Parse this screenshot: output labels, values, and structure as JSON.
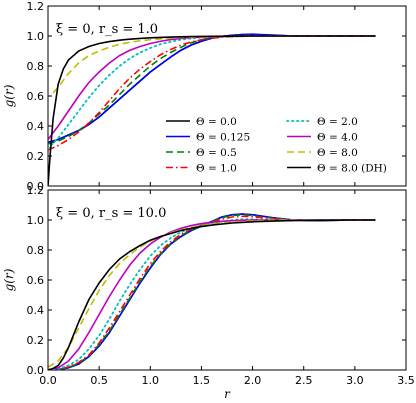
{
  "chart_data": [
    {
      "type": "line",
      "title": "ξ = 0,  r_s = 1.0",
      "xlabel": "",
      "ylabel": "g(r)",
      "xlim": [
        0.0,
        3.5
      ],
      "ylim": [
        0.0,
        1.2
      ],
      "xticks": [
        "0.0",
        "0.5",
        "1.0",
        "1.5",
        "2.0",
        "2.5",
        "3.0",
        "3.5"
      ],
      "yticks": [
        "0.0",
        "0.2",
        "0.4",
        "0.6",
        "0.8",
        "1.0",
        "1.2"
      ],
      "grid": false,
      "legend_position": "lower-right",
      "series": [
        {
          "name": "Θ = 0.0",
          "color": "#000000",
          "style": "solid",
          "x": [
            0.0,
            0.1,
            0.2,
            0.3,
            0.4,
            0.5,
            0.6,
            0.7,
            0.8,
            0.9,
            1.0,
            1.1,
            1.2,
            1.3,
            1.4,
            1.5,
            1.6,
            1.7,
            1.8,
            1.9,
            2.0,
            2.2,
            2.4,
            2.6,
            2.8,
            3.0,
            3.2
          ],
          "y": [
            0.29,
            0.31,
            0.34,
            0.37,
            0.41,
            0.46,
            0.52,
            0.58,
            0.64,
            0.7,
            0.76,
            0.81,
            0.86,
            0.905,
            0.94,
            0.965,
            0.985,
            0.997,
            1.005,
            1.01,
            1.01,
            1.005,
            1.0,
            1.0,
            1.0,
            1.0,
            1.0
          ]
        },
        {
          "name": "Θ = 0.125",
          "color": "#0000ff",
          "style": "solid",
          "x": [
            0.0,
            0.1,
            0.2,
            0.3,
            0.4,
            0.5,
            0.6,
            0.7,
            0.8,
            0.9,
            1.0,
            1.1,
            1.2,
            1.3,
            1.4,
            1.5,
            1.6,
            1.7,
            1.8,
            1.9,
            2.0,
            2.2,
            2.4,
            2.6,
            2.8,
            3.0,
            3.2
          ],
          "y": [
            0.29,
            0.31,
            0.34,
            0.37,
            0.41,
            0.46,
            0.52,
            0.58,
            0.64,
            0.7,
            0.76,
            0.81,
            0.86,
            0.905,
            0.94,
            0.965,
            0.985,
            0.997,
            1.005,
            1.01,
            1.012,
            1.006,
            1.0,
            1.0,
            1.0,
            1.0,
            1.0
          ]
        },
        {
          "name": "Θ = 0.5",
          "color": "#008000",
          "style": "dashed",
          "x": [
            0.0,
            0.1,
            0.2,
            0.3,
            0.4,
            0.5,
            0.6,
            0.7,
            0.8,
            0.9,
            1.0,
            1.1,
            1.2,
            1.3,
            1.4,
            1.5,
            1.6,
            1.7,
            1.8,
            1.9,
            2.0,
            2.2,
            2.4,
            2.6,
            2.8,
            3.0,
            3.2
          ],
          "y": [
            0.28,
            0.3,
            0.33,
            0.37,
            0.42,
            0.48,
            0.54,
            0.61,
            0.68,
            0.74,
            0.8,
            0.85,
            0.89,
            0.925,
            0.955,
            0.975,
            0.99,
            0.998,
            1.002,
            1.003,
            1.002,
            1.0,
            1.0,
            1.0,
            1.0,
            1.0,
            1.0
          ]
        },
        {
          "name": "Θ = 1.0",
          "color": "#ff0000",
          "style": "dashdot",
          "x": [
            0.0,
            0.1,
            0.2,
            0.3,
            0.4,
            0.5,
            0.6,
            0.7,
            0.8,
            0.9,
            1.0,
            1.1,
            1.2,
            1.3,
            1.4,
            1.5,
            1.6,
            1.7,
            1.8,
            1.9,
            2.0,
            2.2,
            2.4,
            2.6,
            2.8,
            3.0,
            3.2
          ],
          "y": [
            0.24,
            0.27,
            0.31,
            0.36,
            0.42,
            0.49,
            0.57,
            0.65,
            0.72,
            0.78,
            0.83,
            0.875,
            0.91,
            0.94,
            0.96,
            0.975,
            0.985,
            0.992,
            0.996,
            0.998,
            0.999,
            1.0,
            1.0,
            1.0,
            1.0,
            1.0,
            1.0
          ]
        },
        {
          "name": "Θ = 2.0",
          "color": "#00bfbf",
          "style": "dotted",
          "x": [
            0.0,
            0.1,
            0.2,
            0.3,
            0.4,
            0.5,
            0.6,
            0.7,
            0.8,
            0.9,
            1.0,
            1.1,
            1.2,
            1.3,
            1.4,
            1.5,
            1.6,
            1.7,
            1.8,
            1.9,
            2.0,
            2.2,
            2.4,
            2.6,
            2.8,
            3.0,
            3.2
          ],
          "y": [
            0.25,
            0.32,
            0.41,
            0.5,
            0.59,
            0.67,
            0.74,
            0.8,
            0.85,
            0.89,
            0.92,
            0.945,
            0.962,
            0.975,
            0.984,
            0.99,
            0.994,
            0.997,
            0.998,
            0.999,
            1.0,
            1.0,
            1.0,
            1.0,
            1.0,
            1.0,
            1.0
          ]
        },
        {
          "name": "Θ = 4.0",
          "color": "#bf00bf",
          "style": "solid",
          "x": [
            0.0,
            0.1,
            0.2,
            0.3,
            0.4,
            0.5,
            0.6,
            0.7,
            0.8,
            0.9,
            1.0,
            1.1,
            1.2,
            1.3,
            1.4,
            1.5,
            1.6,
            1.7,
            1.8,
            1.9,
            2.0,
            2.2,
            2.4,
            2.6,
            2.8,
            3.0,
            3.2
          ],
          "y": [
            0.31,
            0.4,
            0.5,
            0.6,
            0.69,
            0.76,
            0.82,
            0.87,
            0.905,
            0.93,
            0.95,
            0.965,
            0.976,
            0.984,
            0.99,
            0.993,
            0.995,
            0.997,
            0.998,
            0.999,
            1.0,
            1.0,
            1.0,
            1.0,
            1.0,
            1.0,
            1.0
          ]
        },
        {
          "name": "Θ = 8.0",
          "color": "#bfbf00",
          "style": "dashed",
          "x": [
            0.05,
            0.1,
            0.2,
            0.3,
            0.4,
            0.5,
            0.6,
            0.7,
            0.8,
            0.9,
            1.0,
            1.1,
            1.2,
            1.3,
            1.4,
            1.5,
            1.6,
            1.7,
            1.8,
            1.9,
            2.0,
            2.2,
            2.4,
            2.6,
            2.8,
            3.0,
            3.2
          ],
          "y": [
            0.62,
            0.66,
            0.75,
            0.82,
            0.87,
            0.9,
            0.925,
            0.945,
            0.958,
            0.968,
            0.975,
            0.981,
            0.986,
            0.99,
            0.992,
            0.994,
            0.996,
            0.997,
            0.998,
            0.999,
            1.0,
            1.0,
            1.0,
            1.0,
            1.0,
            1.0,
            1.0
          ]
        },
        {
          "name": "Θ = 8.0 (DH)",
          "color": "#000000",
          "style": "solid",
          "x": [
            0.0,
            0.02,
            0.05,
            0.1,
            0.15,
            0.2,
            0.3,
            0.4,
            0.5,
            0.6,
            0.7,
            0.8,
            0.9,
            1.0,
            1.2,
            1.4,
            1.6,
            1.8,
            2.0,
            2.2,
            2.4,
            2.6,
            2.8,
            3.0,
            3.2
          ],
          "y": [
            0.0,
            0.2,
            0.45,
            0.68,
            0.78,
            0.84,
            0.9,
            0.93,
            0.95,
            0.963,
            0.972,
            0.979,
            0.984,
            0.988,
            0.993,
            0.996,
            0.998,
            0.999,
            1.0,
            1.0,
            1.0,
            1.0,
            1.0,
            1.0,
            1.0
          ]
        }
      ]
    },
    {
      "type": "line",
      "title": "ξ = 0,  r_s = 10.0",
      "xlabel": "r",
      "ylabel": "g(r)",
      "xlim": [
        0.0,
        3.5
      ],
      "ylim": [
        0.0,
        1.2
      ],
      "xticks": [
        "0.0",
        "0.5",
        "1.0",
        "1.5",
        "2.0",
        "2.5",
        "3.0",
        "3.5"
      ],
      "yticks": [
        "0.0",
        "0.2",
        "0.4",
        "0.6",
        "0.8",
        "1.0",
        "1.2"
      ],
      "grid": false,
      "series": [
        {
          "name": "Θ = 0.0",
          "color": "#000000",
          "style": "solid",
          "x": [
            0.0,
            0.1,
            0.2,
            0.3,
            0.4,
            0.5,
            0.6,
            0.7,
            0.8,
            0.9,
            1.0,
            1.1,
            1.2,
            1.3,
            1.4,
            1.5,
            1.6,
            1.7,
            1.8,
            1.9,
            2.0,
            2.1,
            2.2,
            2.4,
            2.6,
            2.8,
            3.0,
            3.2
          ],
          "y": [
            0.0,
            0.003,
            0.015,
            0.04,
            0.09,
            0.16,
            0.25,
            0.36,
            0.47,
            0.58,
            0.68,
            0.77,
            0.84,
            0.89,
            0.93,
            0.96,
            0.99,
            1.02,
            1.035,
            1.04,
            1.035,
            1.025,
            1.015,
            1.0,
            0.995,
            0.998,
            1.0,
            1.0
          ]
        },
        {
          "name": "Θ = 0.125",
          "color": "#0000ff",
          "style": "solid",
          "x": [
            0.0,
            0.1,
            0.2,
            0.3,
            0.4,
            0.5,
            0.6,
            0.7,
            0.8,
            0.9,
            1.0,
            1.1,
            1.2,
            1.3,
            1.4,
            1.5,
            1.6,
            1.7,
            1.8,
            1.9,
            2.0,
            2.1,
            2.2,
            2.4,
            2.6,
            2.8,
            3.0,
            3.2
          ],
          "y": [
            0.0,
            0.003,
            0.015,
            0.04,
            0.09,
            0.16,
            0.25,
            0.36,
            0.47,
            0.58,
            0.68,
            0.77,
            0.84,
            0.89,
            0.93,
            0.96,
            0.99,
            1.02,
            1.035,
            1.04,
            1.035,
            1.025,
            1.015,
            1.0,
            0.995,
            0.998,
            1.0,
            1.0
          ]
        },
        {
          "name": "Θ = 0.5",
          "color": "#008000",
          "style": "dashed",
          "x": [
            0.0,
            0.1,
            0.2,
            0.3,
            0.4,
            0.5,
            0.6,
            0.7,
            0.8,
            0.9,
            1.0,
            1.1,
            1.2,
            1.3,
            1.4,
            1.5,
            1.6,
            1.7,
            1.8,
            1.9,
            2.0,
            2.1,
            2.2,
            2.4,
            2.6,
            2.8,
            3.0,
            3.2
          ],
          "y": [
            0.0,
            0.004,
            0.017,
            0.045,
            0.095,
            0.17,
            0.26,
            0.37,
            0.48,
            0.59,
            0.69,
            0.775,
            0.845,
            0.895,
            0.935,
            0.965,
            0.99,
            1.015,
            1.03,
            1.035,
            1.03,
            1.02,
            1.012,
            1.0,
            0.997,
            0.999,
            1.0,
            1.0
          ]
        },
        {
          "name": "Θ = 1.0",
          "color": "#ff0000",
          "style": "dashdot",
          "x": [
            0.0,
            0.1,
            0.2,
            0.3,
            0.4,
            0.5,
            0.6,
            0.7,
            0.8,
            0.9,
            1.0,
            1.1,
            1.2,
            1.3,
            1.4,
            1.5,
            1.6,
            1.7,
            1.8,
            1.9,
            2.0,
            2.1,
            2.2,
            2.4,
            2.6,
            2.8,
            3.0,
            3.2
          ],
          "y": [
            0.0,
            0.005,
            0.02,
            0.05,
            0.1,
            0.18,
            0.28,
            0.39,
            0.5,
            0.61,
            0.71,
            0.79,
            0.855,
            0.905,
            0.94,
            0.965,
            0.985,
            1.005,
            1.02,
            1.025,
            1.022,
            1.015,
            1.01,
            1.0,
            0.998,
            1.0,
            1.0,
            1.0
          ]
        },
        {
          "name": "Θ = 2.0",
          "color": "#00bfbf",
          "style": "dotted",
          "x": [
            0.0,
            0.1,
            0.2,
            0.3,
            0.4,
            0.5,
            0.6,
            0.7,
            0.8,
            0.9,
            1.0,
            1.1,
            1.2,
            1.3,
            1.4,
            1.5,
            1.6,
            1.7,
            1.8,
            1.9,
            2.0,
            2.1,
            2.2,
            2.4,
            2.6,
            2.8,
            3.0,
            3.2
          ],
          "y": [
            0.0,
            0.008,
            0.03,
            0.07,
            0.14,
            0.23,
            0.34,
            0.46,
            0.57,
            0.67,
            0.76,
            0.83,
            0.88,
            0.92,
            0.945,
            0.965,
            0.98,
            0.99,
            1.0,
            1.005,
            1.005,
            1.003,
            1.002,
            1.0,
            1.0,
            1.0,
            1.0,
            1.0
          ]
        },
        {
          "name": "Θ = 4.0",
          "color": "#bf00bf",
          "style": "solid",
          "x": [
            0.0,
            0.1,
            0.2,
            0.3,
            0.4,
            0.5,
            0.6,
            0.7,
            0.8,
            0.9,
            1.0,
            1.1,
            1.2,
            1.3,
            1.4,
            1.5,
            1.6,
            1.7,
            1.8,
            1.9,
            2.0,
            2.2,
            2.4,
            2.6,
            2.8,
            3.0,
            3.2
          ],
          "y": [
            0.0,
            0.015,
            0.06,
            0.14,
            0.25,
            0.37,
            0.49,
            0.6,
            0.7,
            0.78,
            0.84,
            0.885,
            0.92,
            0.945,
            0.963,
            0.976,
            0.985,
            0.991,
            0.995,
            0.998,
            1.0,
            1.0,
            1.0,
            1.0,
            1.0,
            1.0,
            1.0
          ]
        },
        {
          "name": "Θ = 8.0",
          "color": "#bfbf00",
          "style": "dashed",
          "x": [
            0.0,
            0.1,
            0.2,
            0.3,
            0.4,
            0.5,
            0.6,
            0.7,
            0.8,
            0.9,
            1.0,
            1.1,
            1.2,
            1.3,
            1.4,
            1.5,
            1.6,
            1.7,
            1.8,
            2.0,
            2.2,
            2.4,
            2.6,
            2.8,
            3.0,
            3.2
          ],
          "y": [
            0.02,
            0.06,
            0.15,
            0.28,
            0.41,
            0.53,
            0.63,
            0.71,
            0.77,
            0.82,
            0.86,
            0.89,
            0.915,
            0.935,
            0.95,
            0.962,
            0.972,
            0.98,
            0.986,
            0.994,
            0.998,
            1.0,
            1.0,
            1.0,
            1.0,
            1.0
          ]
        },
        {
          "name": "Θ = 8.0 (DH)",
          "color": "#000000",
          "style": "solid",
          "x": [
            0.0,
            0.05,
            0.1,
            0.15,
            0.2,
            0.3,
            0.4,
            0.5,
            0.6,
            0.7,
            0.8,
            0.9,
            1.0,
            1.1,
            1.2,
            1.3,
            1.4,
            1.5,
            1.6,
            1.8,
            2.0,
            2.2,
            2.4,
            2.6,
            2.8,
            3.0,
            3.2
          ],
          "y": [
            0.0,
            0.01,
            0.03,
            0.08,
            0.15,
            0.32,
            0.47,
            0.58,
            0.67,
            0.74,
            0.79,
            0.83,
            0.865,
            0.89,
            0.91,
            0.93,
            0.945,
            0.956,
            0.966,
            0.98,
            0.988,
            0.993,
            0.996,
            0.998,
            0.999,
            1.0,
            1.0
          ]
        }
      ]
    }
  ]
}
